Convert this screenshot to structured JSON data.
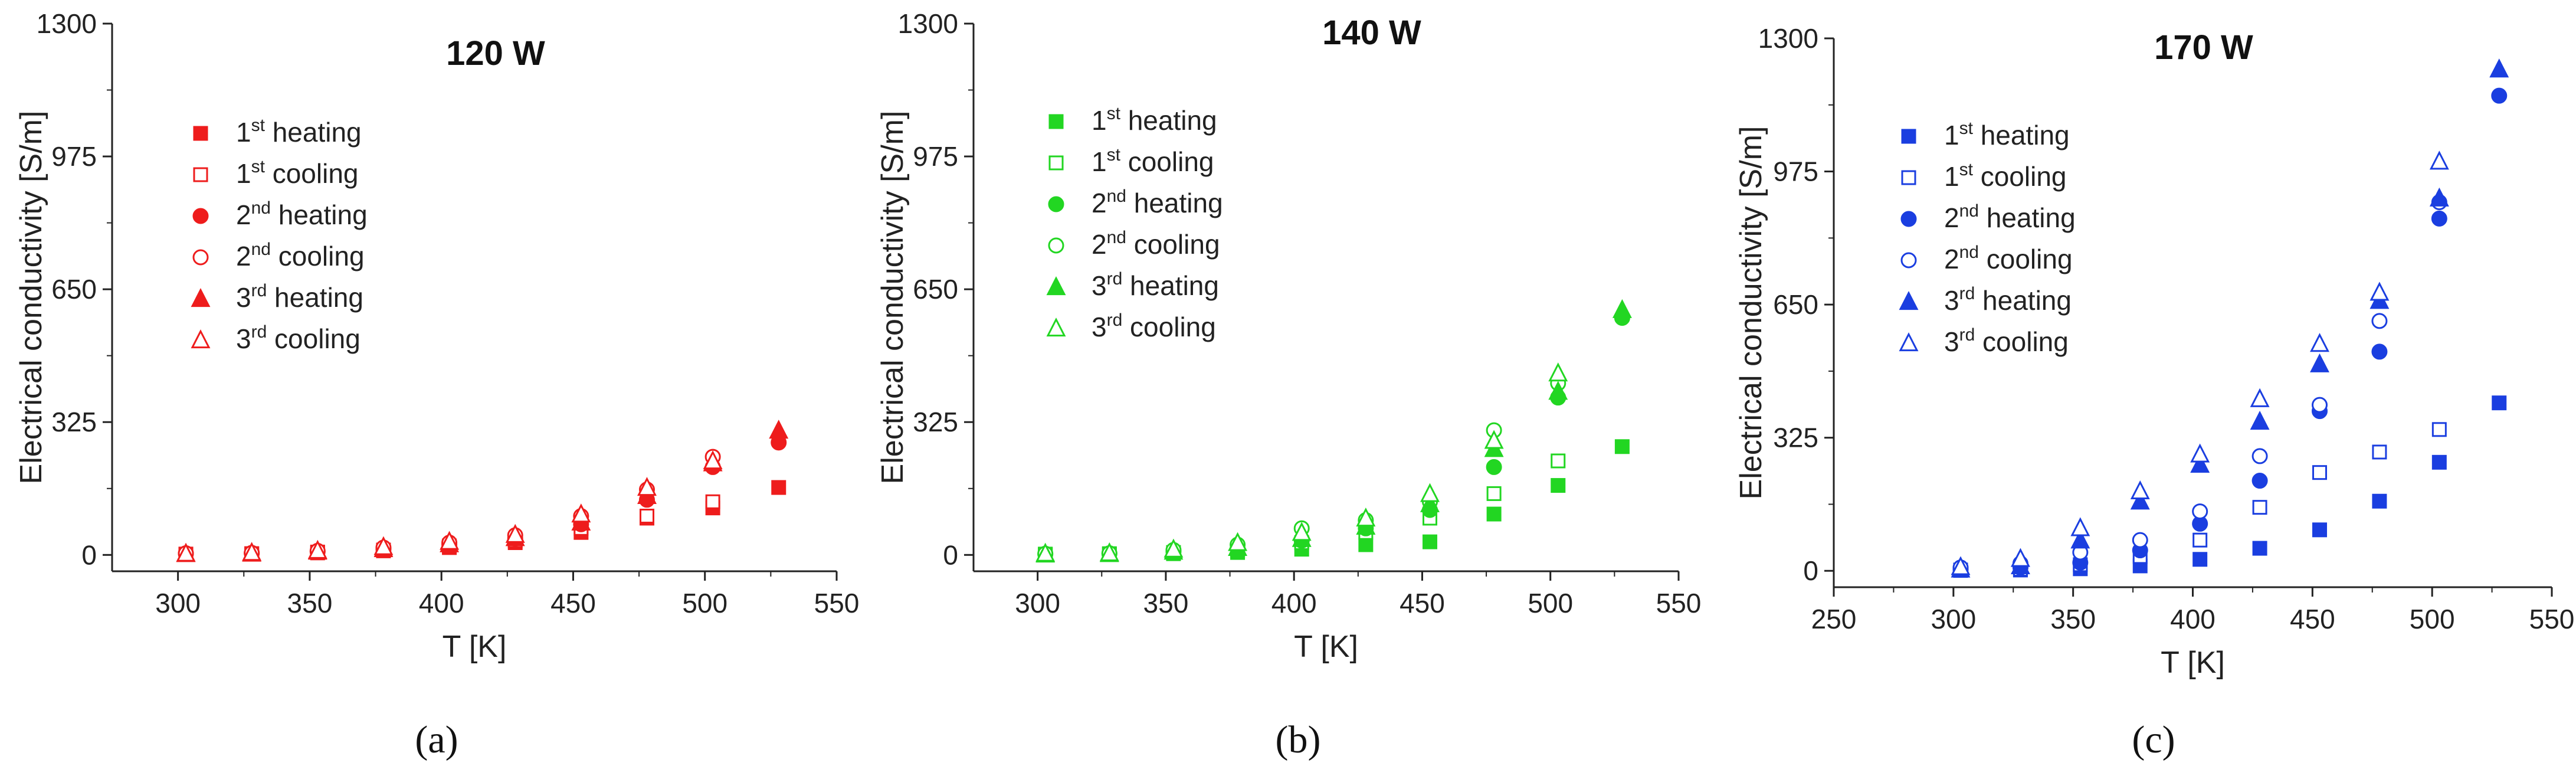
{
  "chart_data": [
    {
      "type": "scatter",
      "panel_label": "(a)",
      "title": "120 W",
      "xlabel": "T [K]",
      "ylabel": "Electrical conductivity [S/m]",
      "xlim": [
        275,
        550
      ],
      "ylim": [
        -40,
        1300
      ],
      "xticks": [
        300,
        350,
        400,
        450,
        500,
        550
      ],
      "yticks": [
        0,
        325,
        650,
        975,
        1300
      ],
      "color": "#ee1c1c",
      "legend_position": "upper-left",
      "series": [
        {
          "name": "1st heating",
          "ord": "1",
          "sup": "st",
          "word": "heating",
          "marker": "square",
          "filled": true,
          "points": [
            [
              303,
              2
            ],
            [
              328,
              3
            ],
            [
              353,
              5
            ],
            [
              378,
              10
            ],
            [
              403,
              18
            ],
            [
              428,
              30
            ],
            [
              453,
              55
            ],
            [
              478,
              90
            ],
            [
              503,
              115
            ],
            [
              528,
              165
            ]
          ]
        },
        {
          "name": "1st cooling",
          "ord": "1",
          "sup": "st",
          "word": "cooling",
          "marker": "square",
          "filled": false,
          "points": [
            [
              303,
              2
            ],
            [
              328,
              3
            ],
            [
              353,
              7
            ],
            [
              378,
              12
            ],
            [
              403,
              22
            ],
            [
              428,
              35
            ],
            [
              453,
              65
            ],
            [
              478,
              95
            ],
            [
              503,
              130
            ]
          ]
        },
        {
          "name": "2nd heating",
          "ord": "2",
          "sup": "nd",
          "word": "heating",
          "marker": "circle",
          "filled": true,
          "points": [
            [
              303,
              3
            ],
            [
              328,
              4
            ],
            [
              353,
              8
            ],
            [
              378,
              14
            ],
            [
              403,
              25
            ],
            [
              428,
              40
            ],
            [
              453,
              75
            ],
            [
              478,
              135
            ],
            [
              503,
              215
            ],
            [
              528,
              275
            ]
          ]
        },
        {
          "name": "2nd cooling",
          "ord": "2",
          "sup": "nd",
          "word": "cooling",
          "marker": "circle",
          "filled": false,
          "points": [
            [
              303,
              4
            ],
            [
              328,
              5
            ],
            [
              353,
              10
            ],
            [
              378,
              18
            ],
            [
              403,
              30
            ],
            [
              428,
              48
            ],
            [
              453,
              95
            ],
            [
              478,
              160
            ],
            [
              503,
              240
            ]
          ]
        },
        {
          "name": "3rd heating",
          "ord": "3",
          "sup": "rd",
          "word": "heating",
          "marker": "triangle",
          "filled": true,
          "points": [
            [
              303,
              3
            ],
            [
              328,
              4
            ],
            [
              353,
              9
            ],
            [
              378,
              15
            ],
            [
              403,
              27
            ],
            [
              428,
              42
            ],
            [
              453,
              80
            ],
            [
              478,
              145
            ],
            [
              503,
              225
            ],
            [
              528,
              305
            ]
          ]
        },
        {
          "name": "3rd cooling",
          "ord": "3",
          "sup": "rd",
          "word": "cooling",
          "marker": "triangle",
          "filled": false,
          "points": [
            [
              303,
              4
            ],
            [
              328,
              6
            ],
            [
              353,
              11
            ],
            [
              378,
              20
            ],
            [
              403,
              33
            ],
            [
              428,
              50
            ],
            [
              453,
              100
            ],
            [
              478,
              165
            ],
            [
              503,
              230
            ]
          ]
        }
      ]
    },
    {
      "type": "scatter",
      "panel_label": "(b)",
      "title": "140 W",
      "xlabel": "T [K]",
      "ylabel": "Electrical conductivity [S/m]",
      "xlim": [
        275,
        550
      ],
      "ylim": [
        -40,
        1300
      ],
      "xticks": [
        300,
        350,
        400,
        450,
        500,
        550
      ],
      "yticks": [
        0,
        325,
        650,
        975,
        1300
      ],
      "color": "#22d622",
      "legend_position": "upper-left",
      "series": [
        {
          "name": "1st heating",
          "ord": "1",
          "sup": "st",
          "word": "heating",
          "marker": "square",
          "filled": true,
          "points": [
            [
              303,
              1
            ],
            [
              328,
              2
            ],
            [
              353,
              3
            ],
            [
              378,
              6
            ],
            [
              403,
              14
            ],
            [
              428,
              25
            ],
            [
              453,
              32
            ],
            [
              478,
              100
            ],
            [
              503,
              170
            ],
            [
              528,
              265
            ]
          ]
        },
        {
          "name": "1st cooling",
          "ord": "1",
          "sup": "st",
          "word": "cooling",
          "marker": "square",
          "filled": false,
          "points": [
            [
              303,
              2
            ],
            [
              328,
              3
            ],
            [
              353,
              6
            ],
            [
              378,
              12
            ],
            [
              403,
              30
            ],
            [
              428,
              55
            ],
            [
              453,
              90
            ],
            [
              478,
              150
            ],
            [
              503,
              230
            ]
          ]
        },
        {
          "name": "2nd heating",
          "ord": "2",
          "sup": "nd",
          "word": "heating",
          "marker": "circle",
          "filled": true,
          "points": [
            [
              303,
              2
            ],
            [
              328,
              3
            ],
            [
              353,
              8
            ],
            [
              378,
              15
            ],
            [
              403,
              35
            ],
            [
              428,
              65
            ],
            [
              453,
              110
            ],
            [
              478,
              215
            ],
            [
              503,
              385
            ],
            [
              528,
              580
            ]
          ]
        },
        {
          "name": "2nd cooling",
          "ord": "2",
          "sup": "nd",
          "word": "cooling",
          "marker": "circle",
          "filled": false,
          "points": [
            [
              303,
              3
            ],
            [
              328,
              4
            ],
            [
              353,
              12
            ],
            [
              378,
              25
            ],
            [
              403,
              65
            ],
            [
              428,
              85
            ],
            [
              453,
              130
            ],
            [
              478,
              305
            ],
            [
              503,
              420
            ]
          ]
        },
        {
          "name": "3rd heating",
          "ord": "3",
          "sup": "rd",
          "word": "heating",
          "marker": "triangle",
          "filled": true,
          "points": [
            [
              303,
              2
            ],
            [
              328,
              3
            ],
            [
              353,
              9
            ],
            [
              378,
              18
            ],
            [
              403,
              40
            ],
            [
              428,
              70
            ],
            [
              453,
              125
            ],
            [
              478,
              260
            ],
            [
              503,
              400
            ],
            [
              528,
              600
            ]
          ]
        },
        {
          "name": "3rd cooling",
          "ord": "3",
          "sup": "rd",
          "word": "cooling",
          "marker": "triangle",
          "filled": false,
          "points": [
            [
              303,
              4
            ],
            [
              328,
              5
            ],
            [
              353,
              14
            ],
            [
              378,
              30
            ],
            [
              403,
              55
            ],
            [
              428,
              90
            ],
            [
              453,
              150
            ],
            [
              478,
              280
            ],
            [
              503,
              445
            ]
          ]
        }
      ]
    },
    {
      "type": "scatter",
      "panel_label": "(c)",
      "title": "170 W",
      "xlabel": "T [K]",
      "ylabel": "Electrical conductivity [S/m]",
      "xlim": [
        250,
        550
      ],
      "ylim": [
        -40,
        1300
      ],
      "xticks": [
        250,
        300,
        350,
        400,
        450,
        500,
        550
      ],
      "yticks": [
        0,
        325,
        650,
        975,
        1300
      ],
      "color": "#1a3ee0",
      "legend_position": "upper-left",
      "series": [
        {
          "name": "1st heating",
          "ord": "1",
          "sup": "st",
          "word": "heating",
          "marker": "square",
          "filled": true,
          "points": [
            [
              303,
              1
            ],
            [
              328,
              2
            ],
            [
              353,
              5
            ],
            [
              378,
              12
            ],
            [
              403,
              28
            ],
            [
              428,
              55
            ],
            [
              453,
              100
            ],
            [
              478,
              170
            ],
            [
              503,
              265
            ],
            [
              528,
              410
            ]
          ]
        },
        {
          "name": "1st cooling",
          "ord": "1",
          "sup": "st",
          "word": "cooling",
          "marker": "square",
          "filled": false,
          "points": [
            [
              303,
              2
            ],
            [
              328,
              4
            ],
            [
              353,
              15
            ],
            [
              378,
              35
            ],
            [
              403,
              75
            ],
            [
              428,
              155
            ],
            [
              453,
              240
            ],
            [
              478,
              290
            ],
            [
              503,
              345
            ]
          ]
        },
        {
          "name": "2nd heating",
          "ord": "2",
          "sup": "nd",
          "word": "heating",
          "marker": "circle",
          "filled": true,
          "points": [
            [
              303,
              3
            ],
            [
              328,
              8
            ],
            [
              353,
              20
            ],
            [
              378,
              50
            ],
            [
              403,
              115
            ],
            [
              428,
              220
            ],
            [
              453,
              390
            ],
            [
              478,
              535
            ],
            [
              503,
              860
            ],
            [
              528,
              1160
            ]
          ]
        },
        {
          "name": "2nd cooling",
          "ord": "2",
          "sup": "nd",
          "word": "cooling",
          "marker": "circle",
          "filled": false,
          "points": [
            [
              303,
              8
            ],
            [
              328,
              18
            ],
            [
              353,
              45
            ],
            [
              378,
              75
            ],
            [
              403,
              145
            ],
            [
              428,
              280
            ],
            [
              453,
              405
            ],
            [
              478,
              610
            ],
            [
              503,
              900
            ]
          ]
        },
        {
          "name": "3rd heating",
          "ord": "3",
          "sup": "rd",
          "word": "heating",
          "marker": "triangle",
          "filled": true,
          "points": [
            [
              303,
              4
            ],
            [
              328,
              12
            ],
            [
              353,
              75
            ],
            [
              378,
              170
            ],
            [
              403,
              260
            ],
            [
              428,
              365
            ],
            [
              453,
              505
            ],
            [
              478,
              660
            ],
            [
              503,
              910
            ],
            [
              528,
              1225
            ]
          ]
        },
        {
          "name": "3rd cooling",
          "ord": "3",
          "sup": "rd",
          "word": "cooling",
          "marker": "triangle",
          "filled": false,
          "points": [
            [
              303,
              10
            ],
            [
              328,
              30
            ],
            [
              353,
              105
            ],
            [
              378,
              195
            ],
            [
              403,
              285
            ],
            [
              428,
              420
            ],
            [
              453,
              555
            ],
            [
              478,
              680
            ],
            [
              503,
              1000
            ]
          ]
        }
      ]
    }
  ]
}
